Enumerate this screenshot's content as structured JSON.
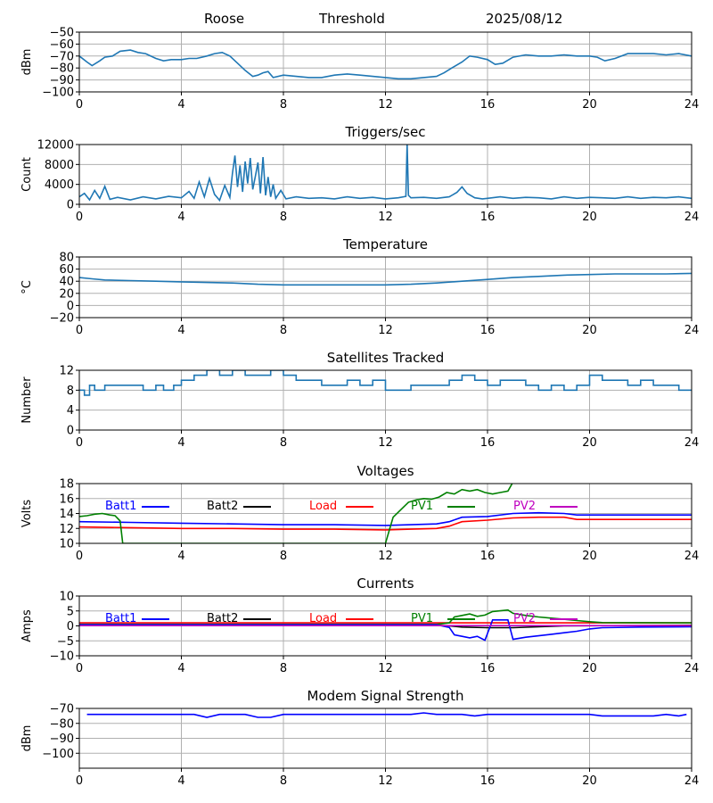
{
  "header": {
    "station": "Roose",
    "mode": "Threshold",
    "date": "2025/08/12"
  },
  "colors": {
    "series_default": "#1f77b4",
    "batt1": "#0000ff",
    "batt2": "#000000",
    "load": "#ff0000",
    "pv1": "#008000",
    "pv2": "#bf00bf",
    "grid": "#b0b0b0"
  },
  "chart_data": [
    {
      "id": "signal",
      "type": "line",
      "title": "",
      "ylabel": "dBm",
      "xlim": [
        0,
        24
      ],
      "ylim": [
        -100,
        -50
      ],
      "xticks": [
        0,
        4,
        8,
        12,
        16,
        20,
        24
      ],
      "yticks": [
        -100,
        -90,
        -80,
        -70,
        -60,
        -50
      ],
      "grid": true,
      "series": [
        {
          "color": "#1f77b4",
          "x": [
            0,
            0.3,
            0.5,
            0.8,
            1.0,
            1.3,
            1.6,
            2.0,
            2.3,
            2.6,
            3.0,
            3.3,
            3.6,
            4.0,
            4.3,
            4.6,
            5.0,
            5.3,
            5.6,
            5.9,
            6.2,
            6.5,
            6.8,
            7.0,
            7.2,
            7.4,
            7.6,
            8.0,
            8.5,
            9.0,
            9.5,
            10.0,
            10.5,
            11.0,
            11.5,
            12.0,
            12.5,
            13.0,
            13.5,
            14.0,
            14.3,
            14.6,
            15.0,
            15.3,
            15.6,
            16.0,
            16.3,
            16.6,
            17.0,
            17.5,
            18.0,
            18.5,
            19.0,
            19.5,
            20.0,
            20.3,
            20.6,
            21.0,
            21.5,
            22.0,
            22.5,
            23.0,
            23.5,
            24.0
          ],
          "y": [
            -70,
            -75,
            -78,
            -74,
            -71,
            -70,
            -66,
            -65,
            -67,
            -68,
            -72,
            -74,
            -73,
            -73,
            -72,
            -72,
            -70,
            -68,
            -67,
            -70,
            -76,
            -82,
            -87,
            -86,
            -84,
            -83,
            -88,
            -86,
            -87,
            -88,
            -88,
            -86,
            -85,
            -86,
            -87,
            -88,
            -89,
            -89,
            -88,
            -87,
            -84,
            -80,
            -75,
            -70,
            -71,
            -73,
            -77,
            -76,
            -71,
            -69,
            -70,
            -70,
            -69,
            -70,
            -70,
            -71,
            -74,
            -72,
            -68,
            -68,
            -68,
            -69,
            -68,
            -70
          ]
        }
      ]
    },
    {
      "id": "triggers",
      "type": "line",
      "title": "Triggers/sec",
      "ylabel": "Count",
      "xlim": [
        0,
        24
      ],
      "ylim": [
        0,
        12000
      ],
      "xticks": [
        0,
        4,
        8,
        12,
        16,
        20,
        24
      ],
      "yticks": [
        0,
        4000,
        8000,
        12000
      ],
      "grid": true,
      "series": [
        {
          "color": "#1f77b4",
          "x": [
            0,
            0.2,
            0.4,
            0.6,
            0.8,
            1.0,
            1.2,
            1.5,
            2.0,
            2.5,
            3.0,
            3.5,
            4.0,
            4.3,
            4.5,
            4.7,
            4.9,
            5.1,
            5.3,
            5.5,
            5.7,
            5.9,
            6.0,
            6.1,
            6.2,
            6.3,
            6.4,
            6.5,
            6.6,
            6.7,
            6.8,
            6.9,
            7.0,
            7.1,
            7.2,
            7.3,
            7.4,
            7.5,
            7.6,
            7.7,
            7.9,
            8.1,
            8.5,
            9.0,
            9.5,
            10.0,
            10.5,
            11.0,
            11.5,
            12.0,
            12.5,
            12.8,
            12.85,
            12.9,
            13.0,
            13.5,
            14.0,
            14.5,
            14.8,
            15.0,
            15.2,
            15.5,
            15.8,
            16.0,
            16.5,
            17.0,
            17.5,
            18.0,
            18.5,
            19.0,
            19.5,
            20.0,
            20.5,
            21.0,
            21.5,
            22.0,
            22.5,
            23.0,
            23.5,
            24.0
          ],
          "y": [
            1500,
            2200,
            900,
            2800,
            1200,
            3600,
            1000,
            1400,
            900,
            1500,
            1100,
            1600,
            1300,
            2600,
            1200,
            4500,
            1500,
            5200,
            2000,
            800,
            3800,
            1400,
            6200,
            9800,
            3500,
            7800,
            2500,
            8600,
            4200,
            9300,
            3000,
            5600,
            8400,
            2200,
            9500,
            1800,
            5500,
            1500,
            4000,
            1200,
            2800,
            1100,
            1500,
            1200,
            1300,
            1100,
            1500,
            1200,
            1400,
            1100,
            1300,
            1600,
            12200,
            1800,
            1300,
            1400,
            1200,
            1500,
            2400,
            3500,
            2200,
            1300,
            1100,
            1200,
            1500,
            1200,
            1400,
            1300,
            1100,
            1500,
            1200,
            1400,
            1300,
            1200,
            1500,
            1200,
            1400,
            1300,
            1500,
            1200
          ]
        }
      ]
    },
    {
      "id": "temperature",
      "type": "line",
      "title": "Temperature",
      "ylabel": "°C",
      "xlim": [
        0,
        24
      ],
      "ylim": [
        -20,
        80
      ],
      "xticks": [
        0,
        4,
        8,
        12,
        16,
        20,
        24
      ],
      "yticks": [
        -20,
        0,
        20,
        40,
        60,
        80
      ],
      "grid": true,
      "series": [
        {
          "color": "#1f77b4",
          "x": [
            0,
            0.5,
            1,
            2,
            3,
            4,
            5,
            6,
            7,
            8,
            9,
            10,
            11,
            12,
            13,
            14,
            15,
            16,
            17,
            18,
            19,
            20,
            21,
            22,
            23,
            24
          ],
          "y": [
            46,
            44,
            42,
            41,
            40,
            39,
            38,
            37,
            35,
            34,
            34,
            34,
            34,
            34,
            35,
            37,
            40,
            43,
            46,
            48,
            50,
            51,
            52,
            52,
            52,
            53
          ]
        }
      ]
    },
    {
      "id": "satellites",
      "type": "line",
      "title": "Satellites Tracked",
      "ylabel": "Number",
      "xlim": [
        0,
        24
      ],
      "ylim": [
        0,
        12
      ],
      "xticks": [
        0,
        4,
        8,
        12,
        16,
        20,
        24
      ],
      "yticks": [
        0,
        4,
        8,
        12
      ],
      "grid": true,
      "series": [
        {
          "color": "#1f77b4",
          "step": true,
          "x": [
            0,
            0.2,
            0.4,
            0.6,
            1.0,
            2.0,
            2.5,
            3.0,
            3.3,
            3.7,
            4.0,
            4.5,
            5.0,
            5.5,
            6.0,
            6.5,
            7.0,
            7.5,
            8.0,
            8.5,
            9.0,
            9.5,
            10.0,
            10.5,
            11.0,
            11.5,
            12.0,
            12.5,
            13.0,
            13.5,
            14.0,
            14.5,
            15.0,
            15.5,
            16.0,
            16.5,
            17.0,
            17.5,
            18.0,
            18.5,
            19.0,
            19.5,
            20.0,
            20.5,
            21.0,
            21.5,
            22.0,
            22.5,
            23.0,
            23.5,
            24.0
          ],
          "y": [
            8,
            7,
            9,
            8,
            9,
            9,
            8,
            9,
            8,
            9,
            10,
            11,
            12,
            11,
            12,
            11,
            11,
            12,
            11,
            10,
            10,
            9,
            9,
            10,
            9,
            10,
            8,
            8,
            9,
            9,
            9,
            10,
            11,
            10,
            9,
            10,
            10,
            9,
            8,
            9,
            8,
            9,
            11,
            10,
            10,
            9,
            10,
            9,
            9,
            8,
            8
          ]
        }
      ]
    },
    {
      "id": "voltages",
      "type": "line",
      "title": "Voltages",
      "ylabel": "Volts",
      "xlim": [
        0,
        24
      ],
      "ylim": [
        10,
        18
      ],
      "xticks": [
        0,
        4,
        8,
        12,
        16,
        20,
        24
      ],
      "yticks": [
        10,
        12,
        14,
        16,
        18
      ],
      "grid": true,
      "legend": [
        "Batt1",
        "Batt2",
        "Load",
        "PV1",
        "PV2"
      ],
      "series": [
        {
          "name": "Batt1",
          "color": "#0000ff",
          "x": [
            0,
            2,
            4,
            6,
            8,
            10,
            12,
            13,
            14,
            14.5,
            15,
            16,
            17,
            18,
            19,
            19.5,
            24
          ],
          "y": [
            12.9,
            12.8,
            12.7,
            12.6,
            12.5,
            12.5,
            12.4,
            12.5,
            12.6,
            12.9,
            13.5,
            13.6,
            14.0,
            14.1,
            14.0,
            13.8,
            13.8
          ]
        },
        {
          "name": "Load",
          "color": "#ff0000",
          "x": [
            0,
            2,
            4,
            6,
            8,
            10,
            12,
            13,
            14,
            14.5,
            15,
            16,
            17,
            18,
            19,
            19.5,
            24
          ],
          "y": [
            12.2,
            12.1,
            12.0,
            12.0,
            11.9,
            11.9,
            11.8,
            11.9,
            12.0,
            12.3,
            12.9,
            13.1,
            13.4,
            13.5,
            13.5,
            13.2,
            13.2
          ]
        },
        {
          "name": "PV1",
          "color": "#008000",
          "x": [
            0,
            0.3,
            0.6,
            0.9,
            1.2,
            1.4,
            1.6,
            1.7,
            12.0,
            12.3,
            12.6,
            12.9,
            13.2,
            13.5,
            13.8,
            14.1,
            14.4,
            14.7,
            15.0,
            15.3,
            15.6,
            15.9,
            16.2,
            16.5,
            16.8,
            17.0
          ],
          "y": [
            13.6,
            13.7,
            13.9,
            14.0,
            13.8,
            13.7,
            13.0,
            10.0,
            10.0,
            13.5,
            14.5,
            15.5,
            15.8,
            16.0,
            15.9,
            16.2,
            16.8,
            16.6,
            17.2,
            17.0,
            17.2,
            16.8,
            16.6,
            16.8,
            17.0,
            18.2
          ]
        }
      ]
    },
    {
      "id": "currents",
      "type": "line",
      "title": "Currents",
      "ylabel": "Amps",
      "xlim": [
        0,
        24
      ],
      "ylim": [
        -10,
        10
      ],
      "xticks": [
        0,
        4,
        8,
        12,
        16,
        20,
        24
      ],
      "yticks": [
        -10,
        -5,
        0,
        5,
        10
      ],
      "grid": true,
      "legend": [
        "Batt1",
        "Batt2",
        "Load",
        "PV1",
        "PV2"
      ],
      "series": [
        {
          "name": "Batt2",
          "color": "#000000",
          "x": [
            0,
            14,
            14.5,
            15,
            16,
            17,
            18,
            19,
            24
          ],
          "y": [
            0.2,
            0.2,
            0,
            -0.4,
            -0.6,
            -0.6,
            -0.3,
            0,
            0.2
          ]
        },
        {
          "name": "Load",
          "color": "#ff0000",
          "x": [
            0,
            24
          ],
          "y": [
            1.0,
            1.0
          ]
        },
        {
          "name": "PV1",
          "color": "#008000",
          "x": [
            0,
            14,
            14.5,
            14.7,
            15.0,
            15.3,
            15.6,
            15.9,
            16.2,
            16.8,
            17.0,
            17.5,
            18.0,
            18.5,
            19.0,
            19.5,
            20.0,
            20.5,
            24
          ],
          "y": [
            0.5,
            0.5,
            1.0,
            3.0,
            3.5,
            4.0,
            3.2,
            3.6,
            4.8,
            5.3,
            4.2,
            3.5,
            3.0,
            2.6,
            2.2,
            1.8,
            1.4,
            1.1,
            1.0
          ]
        },
        {
          "name": "Batt1",
          "color": "#0000ff",
          "x": [
            0,
            14,
            14.5,
            14.7,
            15.0,
            15.3,
            15.6,
            15.9,
            16.2,
            16.8,
            17.0,
            17.5,
            18.0,
            18.5,
            19.0,
            19.5,
            20.0,
            20.5,
            22,
            24
          ],
          "y": [
            0.4,
            0.4,
            -0.5,
            -3.0,
            -3.5,
            -4.0,
            -3.5,
            -4.8,
            2.0,
            2.0,
            -4.5,
            -3.8,
            -3.3,
            -2.8,
            -2.3,
            -1.8,
            -1.0,
            -0.6,
            -0.4,
            -0.3
          ]
        },
        {
          "name": "PV2",
          "color": "#bf00bf",
          "x": [
            0,
            24
          ],
          "y": [
            0.1,
            0.1
          ]
        }
      ]
    },
    {
      "id": "modem",
      "type": "line",
      "title": "Modem Signal Strength",
      "ylabel": "dBm",
      "xlim": [
        0,
        24
      ],
      "ylim": [
        -110,
        -70
      ],
      "xticks": [
        0,
        4,
        8,
        12,
        16,
        20,
        24
      ],
      "yticks": [
        -100,
        -90,
        -80,
        -70
      ],
      "grid": true,
      "series": [
        {
          "color": "#0000ff",
          "x": [
            0.3,
            1,
            2,
            3,
            4,
            4.5,
            5,
            5.5,
            6,
            6.5,
            7,
            7.5,
            8,
            9,
            10,
            11,
            12,
            13,
            13.5,
            14,
            15,
            15.5,
            16,
            17,
            18,
            19,
            20,
            20.5,
            21,
            22,
            22.5,
            23,
            23.5,
            23.8
          ],
          "y": [
            -74,
            -74,
            -74,
            -74,
            -74,
            -74,
            -76,
            -74,
            -74,
            -74,
            -76,
            -76,
            -74,
            -74,
            -74,
            -74,
            -74,
            -74,
            -73,
            -74,
            -74,
            -75,
            -74,
            -74,
            -74,
            -74,
            -74,
            -75,
            -75,
            -75,
            -75,
            -74,
            -75,
            -74
          ]
        }
      ]
    }
  ]
}
